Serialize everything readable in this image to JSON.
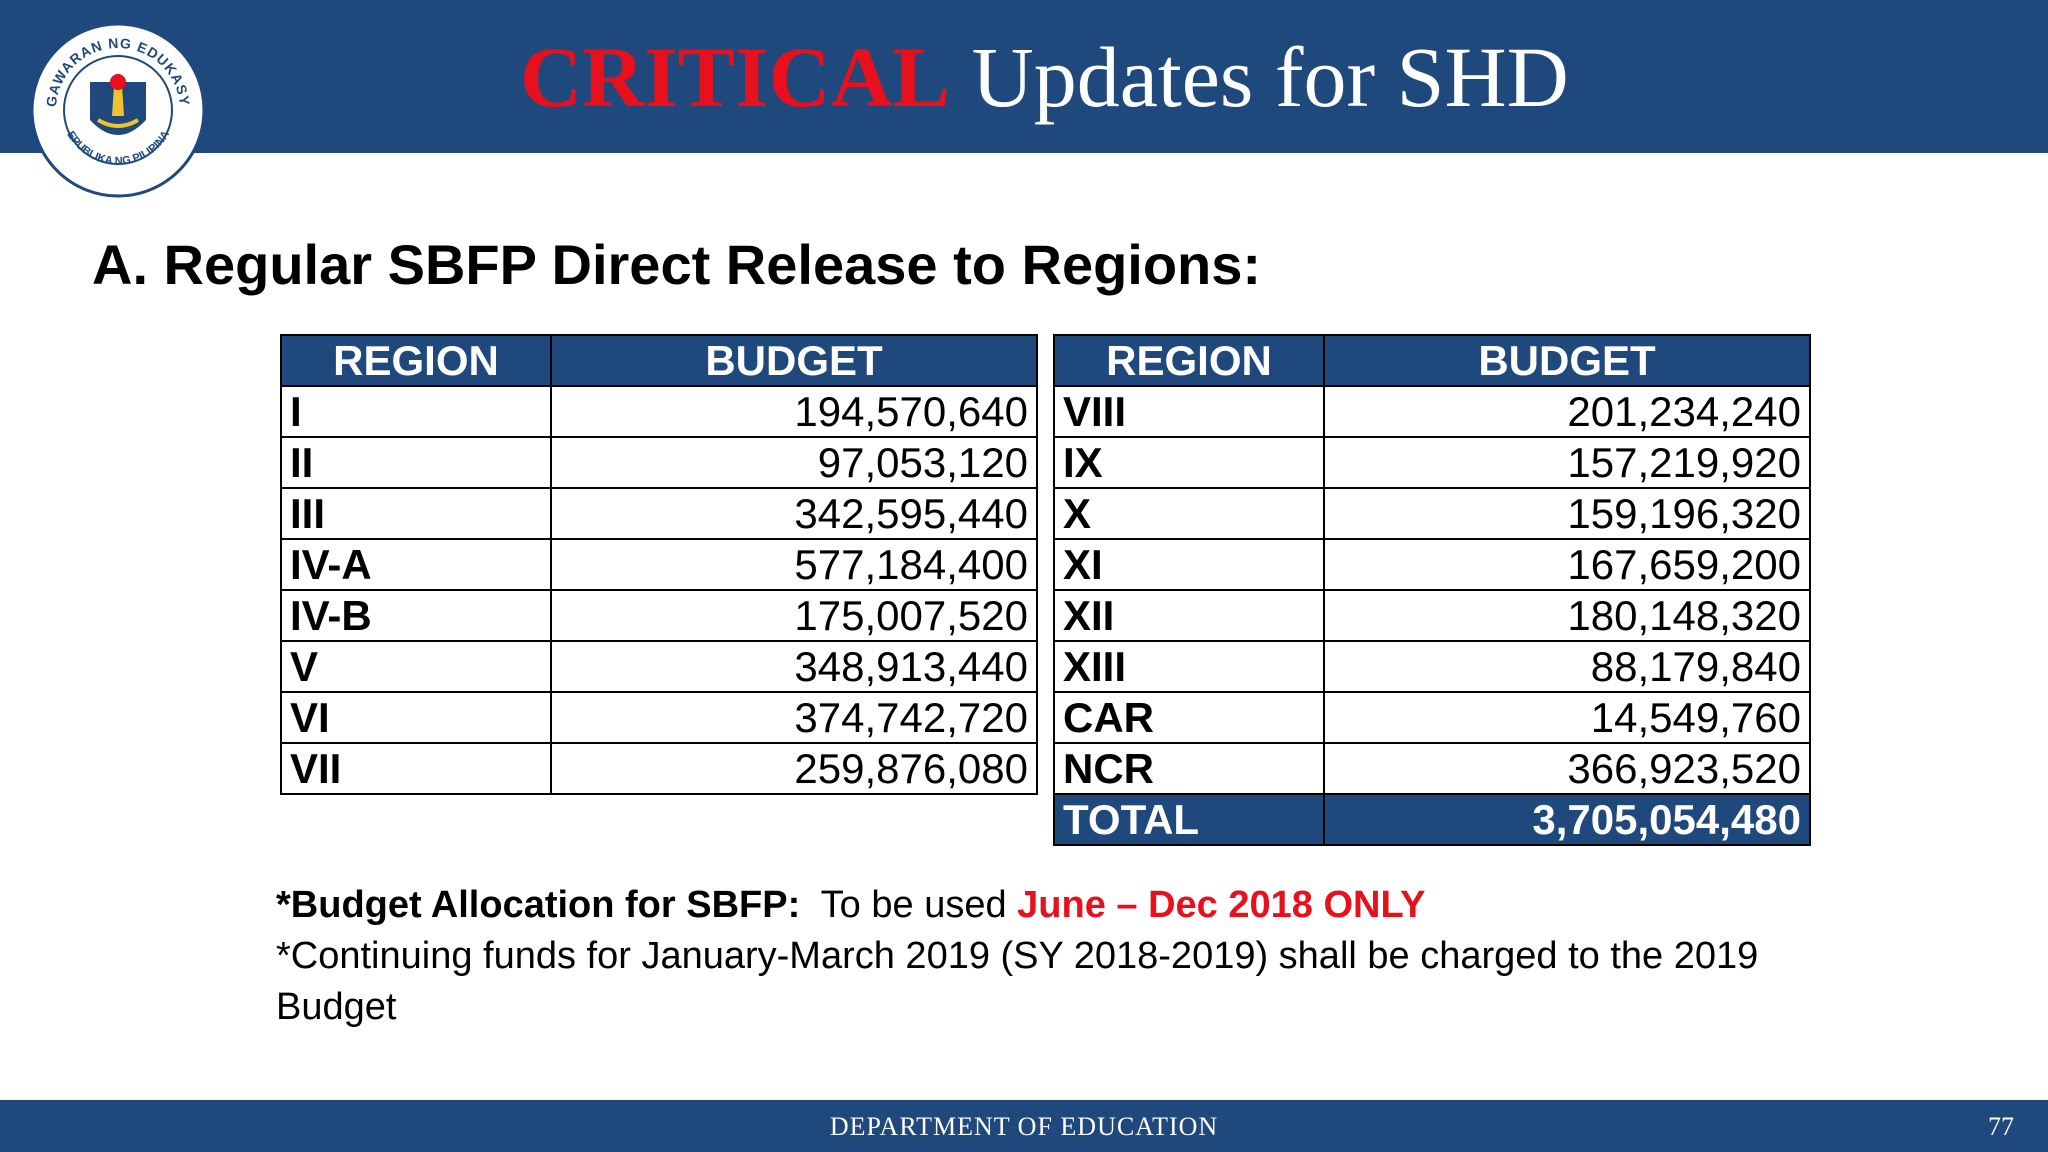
{
  "header": {
    "title_emphasis": "CRITICAL",
    "title_rest": " Updates for SHD",
    "seal": {
      "icon": "deped-seal-icon",
      "top_text": "KAGAWARAN NG EDUKASYON",
      "bottom_text": "REPUBLIKA NG PILIPINAS"
    }
  },
  "section_heading": "A. Regular SBFP Direct Release to Regions:",
  "tables": {
    "left": {
      "headers": [
        "REGION",
        "BUDGET"
      ],
      "rows": [
        {
          "region": "I",
          "budget": "194,570,640"
        },
        {
          "region": "II",
          "budget": "97,053,120"
        },
        {
          "region": "III",
          "budget": "342,595,440"
        },
        {
          "region": "IV-A",
          "budget": "577,184,400"
        },
        {
          "region": "IV-B",
          "budget": "175,007,520"
        },
        {
          "region": "V",
          "budget": "348,913,440"
        },
        {
          "region": "VI",
          "budget": "374,742,720"
        },
        {
          "region": "VII",
          "budget": "259,876,080"
        }
      ]
    },
    "right": {
      "headers": [
        "REGION",
        "BUDGET"
      ],
      "rows": [
        {
          "region": "VIII",
          "budget": "201,234,240"
        },
        {
          "region": "IX",
          "budget": "157,219,920"
        },
        {
          "region": "X",
          "budget": "159,196,320"
        },
        {
          "region": "XI",
          "budget": "167,659,200"
        },
        {
          "region": "XII",
          "budget": "180,148,320"
        },
        {
          "region": "XIII",
          "budget": "88,179,840"
        },
        {
          "region": "CAR",
          "budget": "14,549,760"
        },
        {
          "region": "NCR",
          "budget": "366,923,520"
        }
      ],
      "total": {
        "label": "TOTAL",
        "value": "3,705,054,480"
      }
    }
  },
  "notes": {
    "line1_bold": "*Budget Allocation for SBFP:",
    "line1_text": "  To be used ",
    "line1_red": "June – Dec 2018 ONLY",
    "line2": "*Continuing funds for January-March 2019 (SY 2018-2019) shall be charged to the 2019 Budget"
  },
  "footer": {
    "text": "DEPARTMENT OF EDUCATION",
    "page_number": "77"
  },
  "colors": {
    "brand_blue": "#1f497d",
    "critical_red": "#e8101c"
  }
}
